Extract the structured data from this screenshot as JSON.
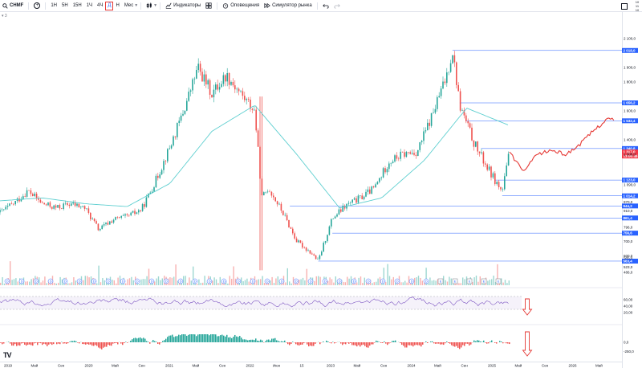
{
  "toolbar": {
    "symbol": "CHMF",
    "add_symbol": "+",
    "intervals": [
      "1Н",
      "5Н",
      "15Н",
      "1Ч",
      "4Ч"
    ],
    "active_interval": "Д",
    "timeframe_label": "Н",
    "range_label": "Мес",
    "indicators_label": "Индикаторы",
    "alerts_label": "Оповещения",
    "replay_label": "Симулятор рынка"
  },
  "top_right": {
    "line1": "10",
    "line2": "11",
    "line3": "10"
  },
  "subbar_label": "3",
  "chart_data": {
    "type": "line",
    "currency": "RUB",
    "price_axis_ticks": [
      "2 100,0",
      "1 900,0",
      "1 800,0",
      "1 600,0",
      "1 400,0",
      "1 300,0",
      "1 090,0",
      "970,0",
      "910,0",
      "796,0",
      "700,0",
      "600,0",
      "585,0",
      "523,0",
      "486,0"
    ],
    "level_labels": [
      "2 018,0",
      "1 656,2",
      "1 532,4",
      "1 340,8",
      "1 317,0",
      "1 123,0",
      "1 014,2",
      "944,2",
      "861,4",
      "756,6",
      "563,4"
    ],
    "current_price": "1 317,0",
    "current_countdown": "13:00:45",
    "time_axis_labels": [
      "2019",
      "Май",
      "Сен",
      "2020",
      "Май",
      "Сен",
      "2021",
      "Май",
      "Сен",
      "2022",
      "Июн",
      "15",
      "2023",
      "Май",
      "Сен",
      "2024",
      "Май",
      "Сен",
      "2025",
      "Май",
      "Сен",
      "2026",
      "Май"
    ],
    "rsi_axis_ticks": [
      "60,00",
      "40,00",
      "20,00"
    ],
    "macd_axis_ticks": [
      "0,0",
      "-250,0"
    ],
    "event_markers": [
      "D",
      "D",
      "D",
      "D",
      "D",
      "D",
      "D",
      "D",
      "D",
      "D",
      "D",
      "D",
      "D",
      "D",
      "D",
      "D",
      "D",
      "D",
      "D",
      "D",
      "D",
      "D",
      "D",
      "D",
      "D",
      "D",
      "D",
      "D",
      "D",
      "D",
      "E",
      "E",
      "E",
      "E",
      "E"
    ],
    "close_series": [
      {
        "t": "2019-01",
        "v": 900
      },
      {
        "t": "2019-03",
        "v": 960
      },
      {
        "t": "2019-05",
        "v": 1050
      },
      {
        "t": "2019-07",
        "v": 960
      },
      {
        "t": "2019-09",
        "v": 930
      },
      {
        "t": "2019-11",
        "v": 960
      },
      {
        "t": "2020-01",
        "v": 930
      },
      {
        "t": "2020-03",
        "v": 780
      },
      {
        "t": "2020-05",
        "v": 850
      },
      {
        "t": "2020-07",
        "v": 870
      },
      {
        "t": "2020-09",
        "v": 920
      },
      {
        "t": "2020-11",
        "v": 1120
      },
      {
        "t": "2021-01",
        "v": 1350
      },
      {
        "t": "2021-03",
        "v": 1600
      },
      {
        "t": "2021-05",
        "v": 1900
      },
      {
        "t": "2021-07",
        "v": 1720
      },
      {
        "t": "2021-09",
        "v": 1850
      },
      {
        "t": "2021-11",
        "v": 1720
      },
      {
        "t": "2022-01",
        "v": 1600
      },
      {
        "t": "2022-02",
        "v": 1000
      },
      {
        "t": "2022-03",
        "v": 1070
      },
      {
        "t": "2022-05",
        "v": 900
      },
      {
        "t": "2022-07",
        "v": 700
      },
      {
        "t": "2022-09",
        "v": 620
      },
      {
        "t": "2022-10",
        "v": 563
      },
      {
        "t": "2022-12",
        "v": 860
      },
      {
        "t": "2023-02",
        "v": 950
      },
      {
        "t": "2023-04",
        "v": 1000
      },
      {
        "t": "2023-06",
        "v": 1070
      },
      {
        "t": "2023-08",
        "v": 1250
      },
      {
        "t": "2023-10",
        "v": 1300
      },
      {
        "t": "2023-12",
        "v": 1320
      },
      {
        "t": "2024-02",
        "v": 1560
      },
      {
        "t": "2024-04",
        "v": 1820
      },
      {
        "t": "2024-05",
        "v": 2018
      },
      {
        "t": "2024-06",
        "v": 1640
      },
      {
        "t": "2024-08",
        "v": 1380
      },
      {
        "t": "2024-10",
        "v": 1200
      },
      {
        "t": "2024-12",
        "v": 1040
      },
      {
        "t": "2025-01",
        "v": 1317
      }
    ],
    "forecast_series": [
      {
        "t": "2025-01",
        "v": 1317
      },
      {
        "t": "2025-03",
        "v": 1180
      },
      {
        "t": "2025-05",
        "v": 1300
      },
      {
        "t": "2025-07",
        "v": 1330
      },
      {
        "t": "2025-09",
        "v": 1300
      },
      {
        "t": "2025-11",
        "v": 1370
      },
      {
        "t": "2026-01",
        "v": 1470
      },
      {
        "t": "2026-03",
        "v": 1550
      },
      {
        "t": "2026-04",
        "v": 1530
      }
    ],
    "ma_series": [
      {
        "t": "2019-01",
        "v": 980
      },
      {
        "t": "2019-07",
        "v": 1000
      },
      {
        "t": "2020-01",
        "v": 960
      },
      {
        "t": "2020-07",
        "v": 940
      },
      {
        "t": "2021-01",
        "v": 1100
      },
      {
        "t": "2021-07",
        "v": 1460
      },
      {
        "t": "2022-01",
        "v": 1640
      },
      {
        "t": "2022-07",
        "v": 1300
      },
      {
        "t": "2023-01",
        "v": 930
      },
      {
        "t": "2023-07",
        "v": 1000
      },
      {
        "t": "2024-01",
        "v": 1260
      },
      {
        "t": "2024-07",
        "v": 1620
      },
      {
        "t": "2025-01",
        "v": 1500
      }
    ],
    "grid": false
  },
  "colors": {
    "up": "#26a69a",
    "down": "#ef5350",
    "ma": "#5fcfd0",
    "level_line": "#2962ff",
    "forecast": "#e53935",
    "rsi": "#7e57c2",
    "current_price_bg": "#f23645"
  },
  "icons": {
    "search": "search-icon",
    "add": "plus-icon",
    "candles": "candles-icon",
    "indicators": "indicators-icon",
    "layout": "layout-icon",
    "alert": "alarm-clock-icon",
    "replay": "replay-icon",
    "undo": "undo-icon",
    "redo": "redo-icon",
    "arrow_down": "arrow-down-icon",
    "logo": "tradingview-logo"
  }
}
